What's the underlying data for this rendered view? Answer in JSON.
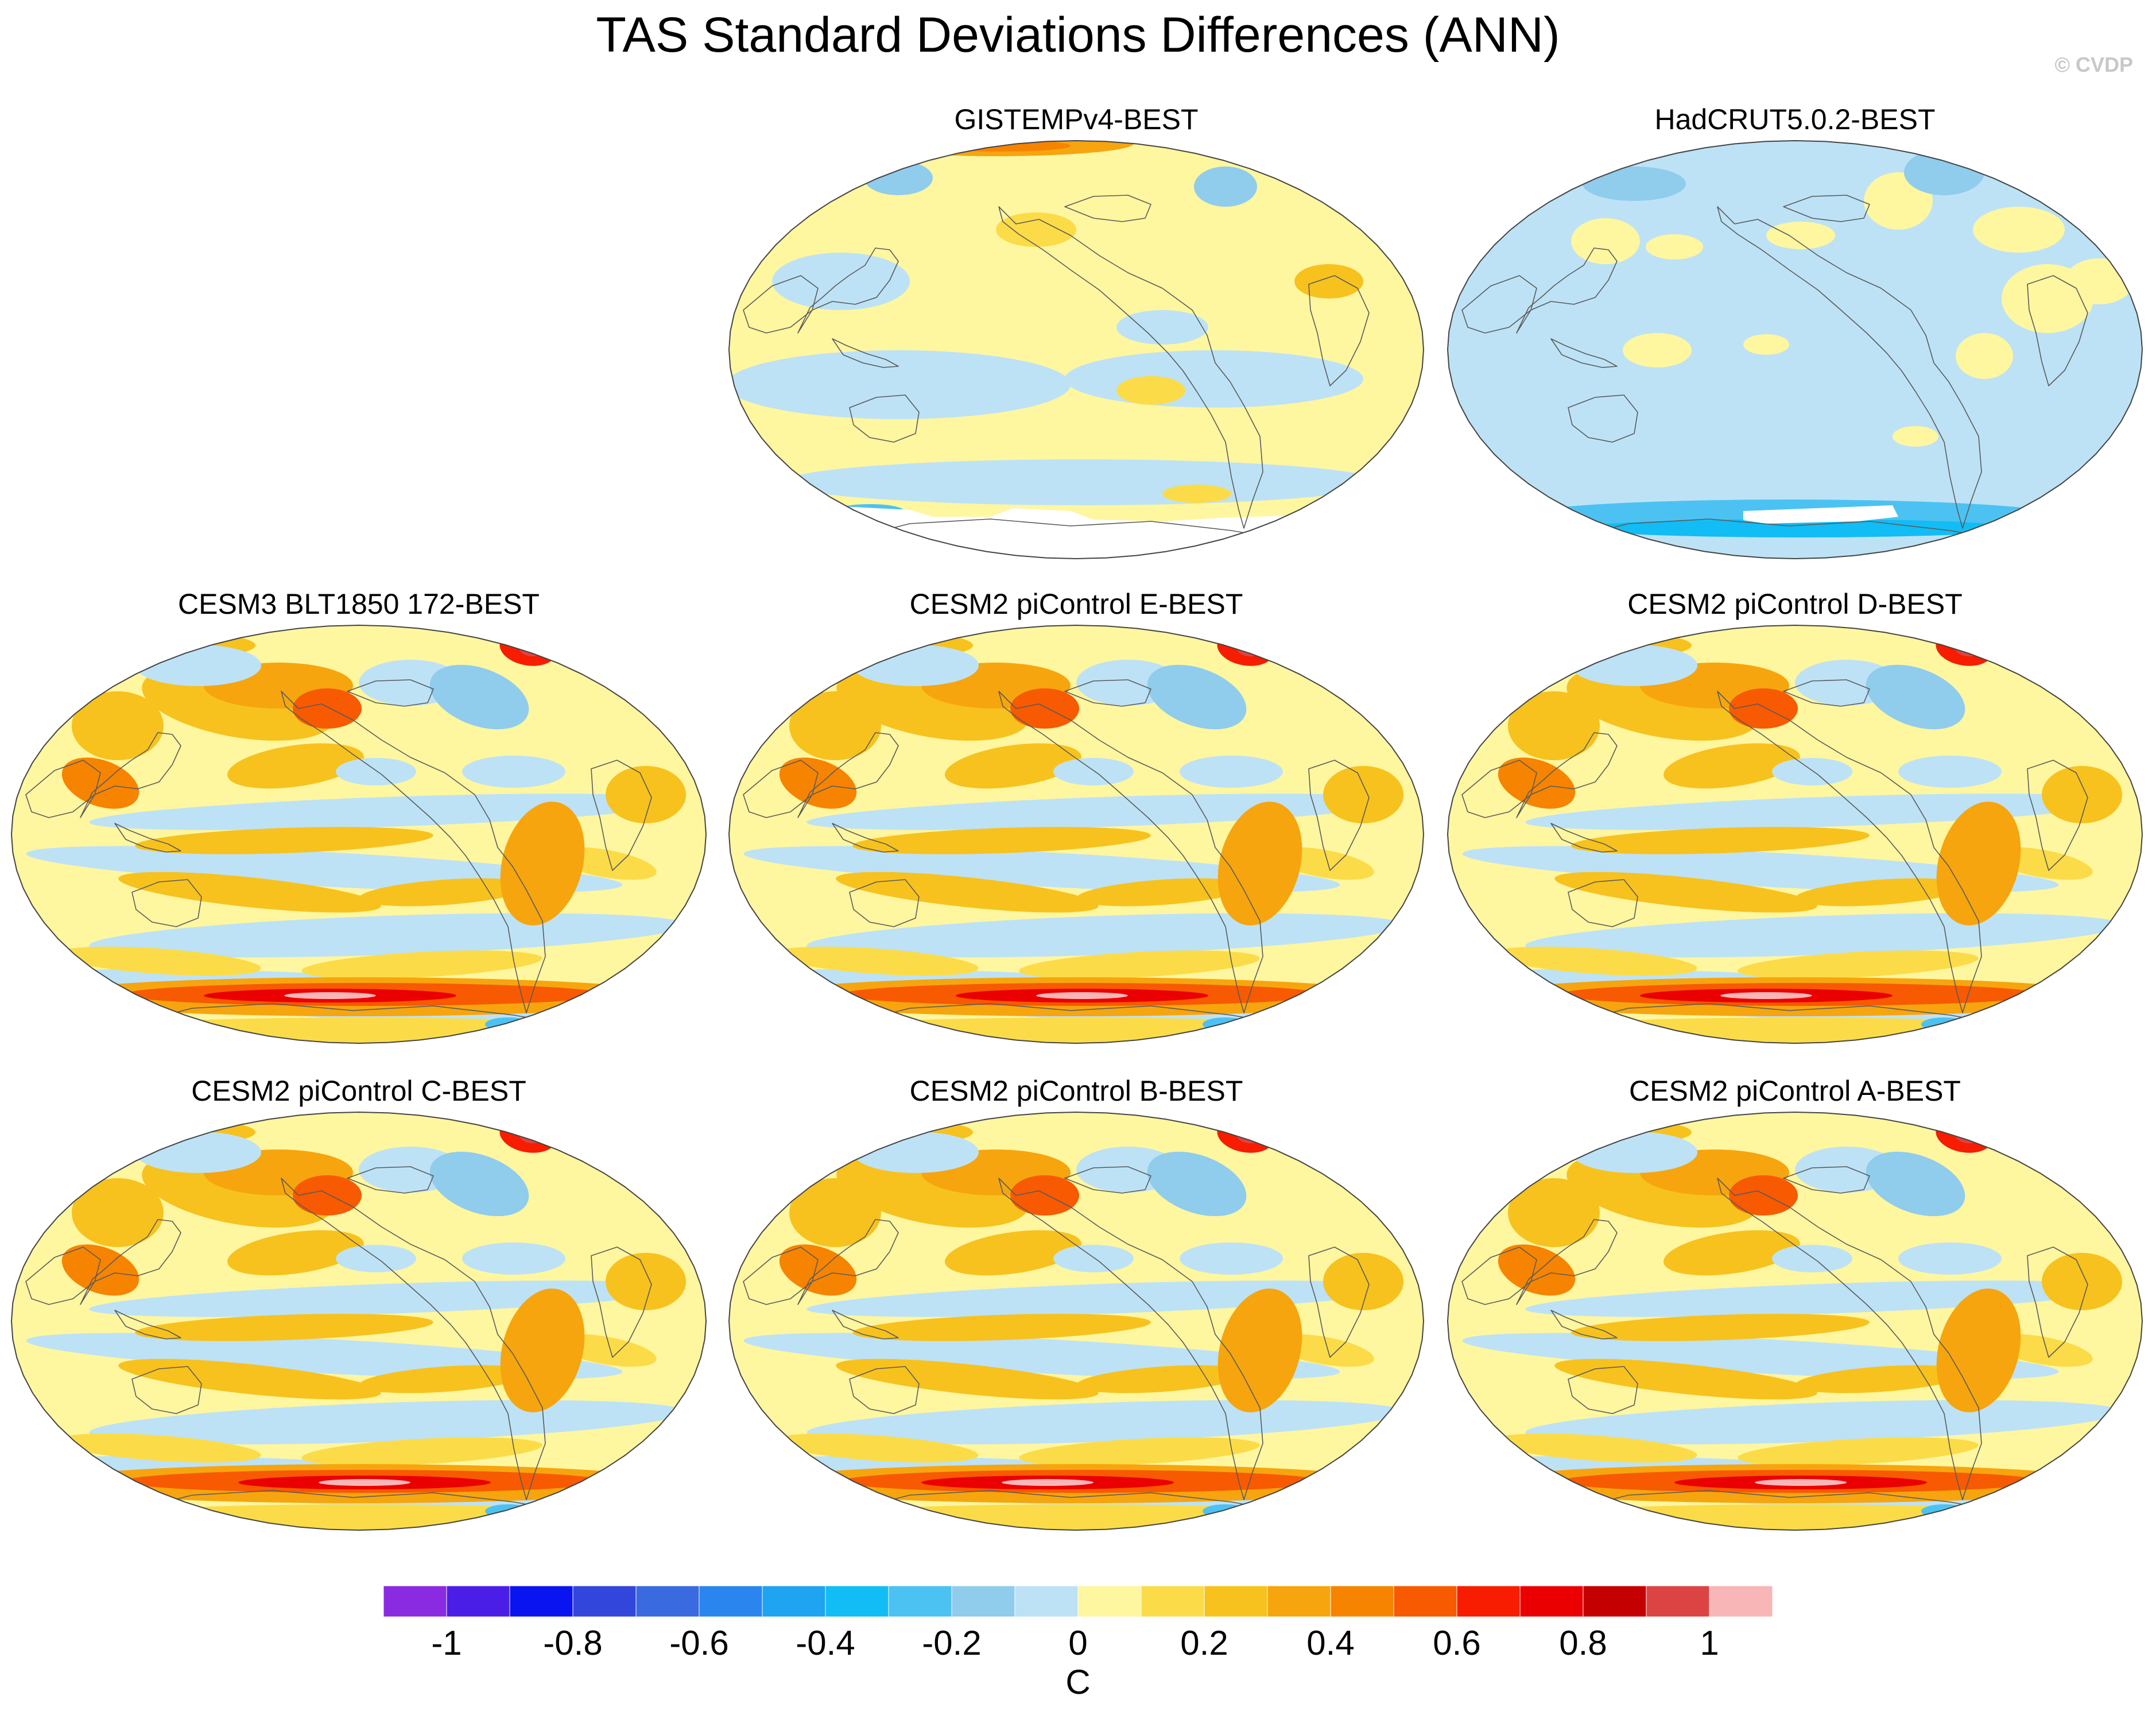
{
  "title": "TAS Standard Deviations Differences (ANN)",
  "watermark": "© CVDP",
  "panels": [
    {
      "title": "GISTEMPv4-BEST",
      "style": "gistemp"
    },
    {
      "title": "HadCRUT5.0.2-BEST",
      "style": "hadcrut"
    },
    {
      "title": "CESM3 BLT1850 172-BEST",
      "style": "model"
    },
    {
      "title": "CESM2 piControl E-BEST",
      "style": "model"
    },
    {
      "title": "CESM2 piControl D-BEST",
      "style": "model"
    },
    {
      "title": "CESM2 piControl C-BEST",
      "style": "model"
    },
    {
      "title": "CESM2 piControl B-BEST",
      "style": "model"
    },
    {
      "title": "CESM2 piControl A-BEST",
      "style": "model"
    }
  ],
  "chart_data": {
    "type": "heatmap",
    "title": "TAS Standard Deviations Differences (ANN)",
    "projection": "robinson",
    "colorbar": {
      "unit": "C",
      "levels": [
        -1.1,
        -1.0,
        -0.9,
        -0.8,
        -0.7,
        -0.6,
        -0.5,
        -0.4,
        -0.3,
        -0.2,
        -0.1,
        0.0,
        0.1,
        0.2,
        0.3,
        0.4,
        0.5,
        0.6,
        0.7,
        0.8,
        0.9,
        1.0,
        1.1
      ],
      "tick_labels": [
        "-1",
        "-0.8",
        "-0.6",
        "-0.4",
        "-0.2",
        "0",
        "0.2",
        "0.4",
        "0.6",
        "0.8",
        "1"
      ],
      "tick_values": [
        -1.0,
        -0.8,
        -0.6,
        -0.4,
        -0.2,
        0.0,
        0.2,
        0.4,
        0.6,
        0.8,
        1.0
      ],
      "colors": [
        "#8a2be2",
        "#4b1ee8",
        "#0a14f0",
        "#3246dc",
        "#3a6ae0",
        "#2a86ee",
        "#1ea4f0",
        "#12bcf4",
        "#4cc2f2",
        "#90ccec",
        "#bde2f6",
        "#fff6a0",
        "#fbdc48",
        "#f7c21e",
        "#f6a50e",
        "#f68400",
        "#f75a00",
        "#f81c00",
        "#ea0000",
        "#c40000",
        "#dc4444",
        "#f8b6b6"
      ]
    }
  }
}
